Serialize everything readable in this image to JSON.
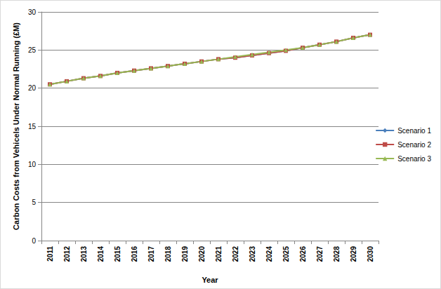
{
  "chart_data": {
    "type": "line",
    "x_label": "Year",
    "y_label": "Carbon Costs from Vehicels Under Normal Running (£M)",
    "categories": [
      "2011",
      "2012",
      "2013",
      "2014",
      "2015",
      "2016",
      "2017",
      "2018",
      "2019",
      "2020",
      "2021",
      "2022",
      "2023",
      "2024",
      "2025",
      "2026",
      "2027",
      "2028",
      "2029",
      "2030"
    ],
    "series": [
      {
        "name": "Scenario 1",
        "color": "#4a7ebb",
        "marker": "diamond",
        "values": [
          20.5,
          20.9,
          21.3,
          21.6,
          22.0,
          22.3,
          22.6,
          22.9,
          23.2,
          23.5,
          23.8,
          24.0,
          24.3,
          24.6,
          24.9,
          25.3,
          25.7,
          26.1,
          26.6,
          27.0
        ]
      },
      {
        "name": "Scenario 2",
        "color": "#be4b48",
        "marker": "square",
        "values": [
          20.5,
          20.9,
          21.3,
          21.6,
          22.0,
          22.3,
          22.6,
          22.9,
          23.2,
          23.5,
          23.8,
          24.0,
          24.3,
          24.6,
          24.9,
          25.3,
          25.7,
          26.1,
          26.6,
          27.0
        ]
      },
      {
        "name": "Scenario 3",
        "color": "#98b954",
        "marker": "triangle",
        "values": [
          20.5,
          20.9,
          21.3,
          21.6,
          22.0,
          22.3,
          22.6,
          22.9,
          23.2,
          23.5,
          23.8,
          24.1,
          24.4,
          24.7,
          25.0,
          25.3,
          25.7,
          26.1,
          26.6,
          27.0
        ]
      }
    ],
    "ylim": [
      0,
      30
    ],
    "yticks": [
      0,
      5,
      10,
      15,
      20,
      25,
      30
    ],
    "grid": true,
    "legend": "right"
  }
}
